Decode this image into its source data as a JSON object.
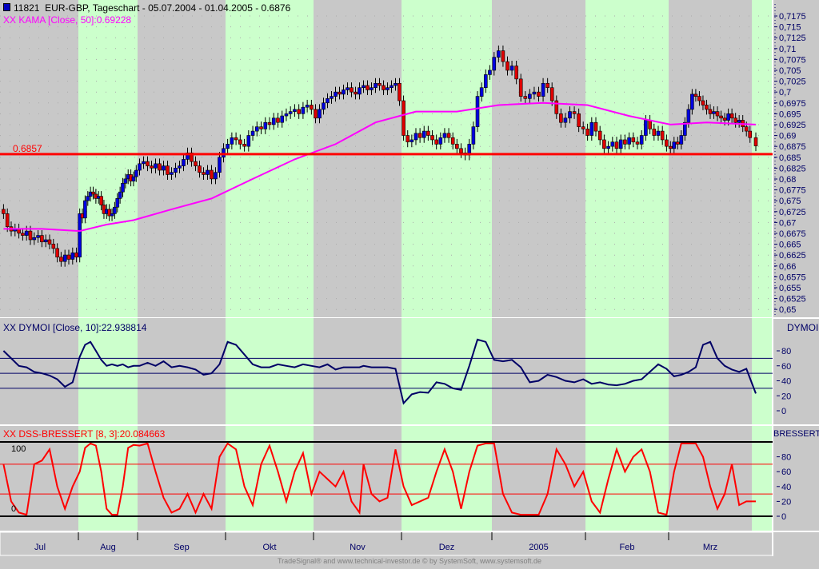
{
  "header": {
    "symbol_id": "11821",
    "title": "EUR-GBP, Tageschart - 05.07.2004 - 01.04.2005 - 0.6876",
    "kama_label": "XX KAMA [Close, 50]:0.69228",
    "level_label": "0.6857"
  },
  "dymoi": {
    "label": "XX DYMOI [Close, 10]:22.938814",
    "axis_title": "DYMOI"
  },
  "stoch": {
    "label": "XX DSS-BRESSERT [8, 3]:20.084663",
    "axis_title": "BRESSERT",
    "top_label": "100",
    "bottom_label": "0"
  },
  "footer": "TradeSignal® and www.technical-investor.de © by  SystemSoft, www.systemsoft.de",
  "colors": {
    "up": "#0000e0",
    "down": "#e00000",
    "kama": "#ff00ff",
    "level": "#ff0000",
    "dymoi": "#000066",
    "stoch": "#ff0000",
    "band": "#ccffcc",
    "bg": "#c8c8c8"
  },
  "chart_data": [
    {
      "type": "candlestick",
      "title": "EUR-GBP, Tageschart",
      "level": 0.6857,
      "ylim": [
        0.65,
        0.72
      ],
      "price_ticks": [
        "0,7175",
        "0,715",
        "0,7125",
        "0,71",
        "0,7075",
        "0,705",
        "0,7025",
        "0,7",
        "0,6975",
        "0,695",
        "0,6925",
        "0,69",
        "0,6875",
        "0,685",
        "0,6825",
        "0,68",
        "0,6775",
        "0,675",
        "0,6725",
        "0,67",
        "0,6675",
        "0,665",
        "0,6625",
        "0,66",
        "0,6575",
        "0,655",
        "0,6525",
        "0,65"
      ],
      "months": [
        "Jul",
        "Aug",
        "Sep",
        "Okt",
        "Nov",
        "Dez",
        "2005",
        "Feb",
        "Mrz"
      ],
      "month_counts": [
        20,
        22,
        22,
        21,
        22,
        22,
        21,
        20,
        23,
        1
      ],
      "closes": [
        0.672,
        0.669,
        0.668,
        0.6685,
        0.6675,
        0.667,
        0.668,
        0.666,
        0.6665,
        0.667,
        0.6655,
        0.666,
        0.665,
        0.664,
        0.662,
        0.661,
        0.6625,
        0.6615,
        0.663,
        0.662,
        0.672,
        0.671,
        0.675,
        0.676,
        0.677,
        0.6765,
        0.6755,
        0.676,
        0.674,
        0.672,
        0.673,
        0.6715,
        0.672,
        0.6735,
        0.6755,
        0.677,
        0.679,
        0.68,
        0.681,
        0.6795,
        0.6805,
        0.682,
        0.6835,
        0.684,
        0.683,
        0.6825,
        0.6835,
        0.682,
        0.683,
        0.681,
        0.6815,
        0.6825,
        0.683,
        0.6845,
        0.686,
        0.684,
        0.683,
        0.6815,
        0.681,
        0.682,
        0.68,
        0.6815,
        0.685,
        0.687,
        0.688,
        0.6895,
        0.689,
        0.688,
        0.6875,
        0.69,
        0.691,
        0.692,
        0.6915,
        0.693,
        0.6925,
        0.694,
        0.693,
        0.6945,
        0.695,
        0.6955,
        0.696,
        0.695,
        0.6965,
        0.697,
        0.696,
        0.694,
        0.696,
        0.6975,
        0.6985,
        0.699,
        0.7,
        0.6995,
        0.7005,
        0.701,
        0.7,
        0.6995,
        0.701,
        0.7015,
        0.7005,
        0.701,
        0.702,
        0.7015,
        0.7005,
        0.701,
        0.7015,
        0.702,
        0.698,
        0.69,
        0.6885,
        0.689,
        0.6905,
        0.6895,
        0.691,
        0.69,
        0.689,
        0.688,
        0.6895,
        0.6905,
        0.6895,
        0.688,
        0.687,
        0.686,
        0.6855,
        0.688,
        0.692,
        0.699,
        0.701,
        0.704,
        0.705,
        0.708,
        0.7095,
        0.707,
        0.705,
        0.706,
        0.703,
        0.699,
        0.6985,
        0.6995,
        0.7,
        0.699,
        0.702,
        0.701,
        0.698,
        0.695,
        0.693,
        0.694,
        0.6955,
        0.695,
        0.692,
        0.6915,
        0.69,
        0.693,
        0.691,
        0.689,
        0.687,
        0.6875,
        0.6885,
        0.687,
        0.689,
        0.688,
        0.6895,
        0.6885,
        0.688,
        0.69,
        0.6935,
        0.6915,
        0.69,
        0.691,
        0.689,
        0.6875,
        0.687,
        0.6885,
        0.688,
        0.69,
        0.693,
        0.696,
        0.6995,
        0.699,
        0.698,
        0.697,
        0.696,
        0.695,
        0.6955,
        0.6945,
        0.694,
        0.6935,
        0.695,
        0.694,
        0.693,
        0.6935,
        0.692,
        0.691,
        0.6895,
        0.6876
      ],
      "kama_index": [
        0,
        10,
        20,
        30,
        40,
        50,
        60,
        70,
        80,
        90,
        100,
        110,
        120,
        130,
        140,
        150,
        160,
        170,
        180,
        193
      ],
      "kama": [
        0.6685,
        0.6685,
        0.668,
        0.6695,
        0.6705,
        0.673,
        0.6755,
        0.68,
        0.6845,
        0.688,
        0.693,
        0.6955,
        0.6955,
        0.697,
        0.6975,
        0.697,
        0.6945,
        0.6925,
        0.693,
        0.6925
      ]
    },
    {
      "type": "line",
      "name": "DYMOI",
      "ylim": [
        -10,
        100
      ],
      "ticks": [
        "80",
        "60",
        "40",
        "20",
        "0"
      ],
      "levels": [
        70,
        50,
        30
      ],
      "values": [
        80,
        70,
        60,
        58,
        52,
        50,
        47,
        42,
        32,
        38,
        72,
        88,
        92,
        80,
        68,
        60,
        62,
        60,
        62,
        58,
        60,
        60,
        64,
        60,
        66,
        58,
        60,
        58,
        55,
        48,
        50,
        62,
        92,
        88,
        75,
        62,
        58,
        58,
        62,
        60,
        58,
        62,
        60,
        58,
        62,
        55,
        58,
        58,
        58,
        60,
        58,
        58,
        58,
        56,
        10,
        22,
        25,
        24,
        38,
        36,
        30,
        28,
        60,
        95,
        92,
        68,
        66,
        68,
        58,
        38,
        40,
        48,
        45,
        40,
        38,
        42,
        36,
        38,
        35,
        34,
        36,
        40,
        42,
        52,
        62,
        56,
        46,
        48,
        52,
        58,
        88,
        92,
        70,
        60,
        55,
        52,
        56,
        23
      ]
    },
    {
      "type": "line",
      "name": "DSS-BRESSERT",
      "ylim": [
        -10,
        110
      ],
      "ticks": [
        "80",
        "60",
        "40",
        "20",
        "0"
      ],
      "levels": [
        100,
        70,
        30,
        0
      ],
      "values": [
        70,
        20,
        5,
        2,
        70,
        75,
        90,
        40,
        10,
        40,
        60,
        92,
        98,
        95,
        60,
        10,
        2,
        2,
        40,
        92,
        96,
        95,
        98,
        60,
        25,
        5,
        10,
        30,
        5,
        30,
        10,
        80,
        98,
        90,
        40,
        15,
        70,
        95,
        60,
        20,
        60,
        85,
        30,
        60,
        50,
        40,
        60,
        20,
        5,
        70,
        30,
        20,
        25,
        90,
        40,
        15,
        20,
        25,
        60,
        90,
        60,
        10,
        60,
        95,
        98,
        98,
        30,
        5,
        2,
        2,
        2,
        30,
        90,
        70,
        40,
        60,
        20,
        5,
        50,
        90,
        60,
        80,
        90,
        60,
        5,
        2,
        60,
        98,
        98,
        98,
        80,
        40,
        10,
        30,
        70,
        15,
        20,
        20
      ]
    }
  ]
}
